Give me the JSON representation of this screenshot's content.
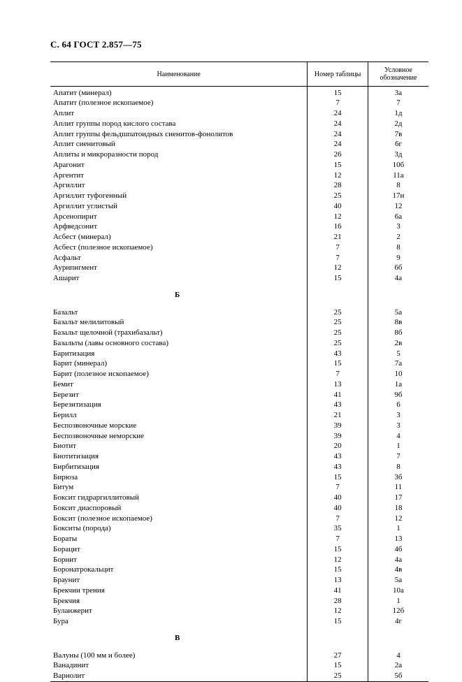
{
  "header": {
    "page_ref": "С. 64 ГОСТ 2.857—75"
  },
  "table": {
    "columns": {
      "name": "Наименование",
      "num": "Номер\nтаблицы",
      "sym": "Условное\nобозначение"
    },
    "rows": [
      {
        "name": "Апатит (минерал)",
        "num": "15",
        "sym": "3а"
      },
      {
        "name": "Апатит (полезное ископаемое)",
        "num": "7",
        "sym": "7"
      },
      {
        "name": "Аплит",
        "num": "24",
        "sym": "1д"
      },
      {
        "name": "Аплит группы пород кислого состава",
        "num": "24",
        "sym": "2д"
      },
      {
        "name": "Аплит группы фельдшпатоидных сиенитов-фонолитов",
        "num": "24",
        "sym": "7в"
      },
      {
        "name": "Аплит сиенитовый",
        "num": "24",
        "sym": "6г"
      },
      {
        "name": "Аплиты и микроразности пород",
        "num": "26",
        "sym": "3д"
      },
      {
        "name": "Арагонит",
        "num": "15",
        "sym": "10б"
      },
      {
        "name": "Аргентит",
        "num": "12",
        "sym": "11а"
      },
      {
        "name": "Аргиллит",
        "num": "28",
        "sym": "8"
      },
      {
        "name": "Аргиллит туфогенный",
        "num": "25",
        "sym": "17н"
      },
      {
        "name": "Аргиллит углистый",
        "num": "40",
        "sym": "12"
      },
      {
        "name": "Арсенопирит",
        "num": "12",
        "sym": "6а"
      },
      {
        "name": "Арфведсонит",
        "num": "16",
        "sym": "3"
      },
      {
        "name": "Асбест (минерал)",
        "num": "21",
        "sym": "2"
      },
      {
        "name": "Асбест (полезное ископаемое)",
        "num": "7",
        "sym": "8"
      },
      {
        "name": "Асфальт",
        "num": "7",
        "sym": "9"
      },
      {
        "name": "Аурипигмент",
        "num": "12",
        "sym": "6б"
      },
      {
        "name": "Ашарит",
        "num": "15",
        "sym": "4а"
      },
      {
        "section": "Б"
      },
      {
        "name": "Базальт",
        "num": "25",
        "sym": "5а"
      },
      {
        "name": "Базальт мелилитовый",
        "num": "25",
        "sym": "8в"
      },
      {
        "name": "Базальт щелочной (трахибазальт)",
        "num": "25",
        "sym": "8б"
      },
      {
        "name": "Базальты (лавы основного состава)",
        "num": "25",
        "sym": "2в"
      },
      {
        "name": "Баритизация",
        "num": "43",
        "sym": "5"
      },
      {
        "name": "Барит (минерал)",
        "num": "15",
        "sym": "7а"
      },
      {
        "name": "Барит (полезное ископаемое)",
        "num": "7",
        "sym": "10"
      },
      {
        "name": "Бемит",
        "num": "13",
        "sym": "1а"
      },
      {
        "name": "Березит",
        "num": "41",
        "sym": "9б"
      },
      {
        "name": "Березитизация",
        "num": "43",
        "sym": "6"
      },
      {
        "name": "Берилл",
        "num": "21",
        "sym": "3"
      },
      {
        "name": "Беспозвоночные морские",
        "num": "39",
        "sym": "3"
      },
      {
        "name": "Беспозвоночные неморские",
        "num": "39",
        "sym": "4"
      },
      {
        "name": "Биотит",
        "num": "20",
        "sym": "1"
      },
      {
        "name": "Биотитизация",
        "num": "43",
        "sym": "7"
      },
      {
        "name": "Бирбитизация",
        "num": "43",
        "sym": "8"
      },
      {
        "name": "Бирюза",
        "num": "15",
        "sym": "3б"
      },
      {
        "name": "Битум",
        "num": "7",
        "sym": "11"
      },
      {
        "name": "Боксит гидраргиллитовый",
        "num": "40",
        "sym": "17"
      },
      {
        "name": "Боксит диаспоровый",
        "num": "40",
        "sym": "18"
      },
      {
        "name": "Боксит (полезное ископаемое)",
        "num": "7",
        "sym": "12"
      },
      {
        "name": "Бокситы (порода)",
        "num": "35",
        "sym": "1"
      },
      {
        "name": "Бораты",
        "num": "7",
        "sym": "13"
      },
      {
        "name": "Борацит",
        "num": "15",
        "sym": "4б"
      },
      {
        "name": "Борнит",
        "num": "12",
        "sym": "4а"
      },
      {
        "name": "Боронатрокальцит",
        "num": "15",
        "sym": "4в"
      },
      {
        "name": "Браунит",
        "num": "13",
        "sym": "5а"
      },
      {
        "name": "Брекчии трения",
        "num": "41",
        "sym": "10а"
      },
      {
        "name": "Брекчия",
        "num": "28",
        "sym": "1"
      },
      {
        "name": "Буланжерит",
        "num": "12",
        "sym": "12б"
      },
      {
        "name": "Бура",
        "num": "15",
        "sym": "4г"
      },
      {
        "section": "В"
      },
      {
        "name": "Валуны (100 мм и более)",
        "num": "27",
        "sym": "4"
      },
      {
        "name": "Ванадинит",
        "num": "15",
        "sym": "2а"
      },
      {
        "name": "Вариолит",
        "num": "25",
        "sym": "5б"
      }
    ]
  }
}
